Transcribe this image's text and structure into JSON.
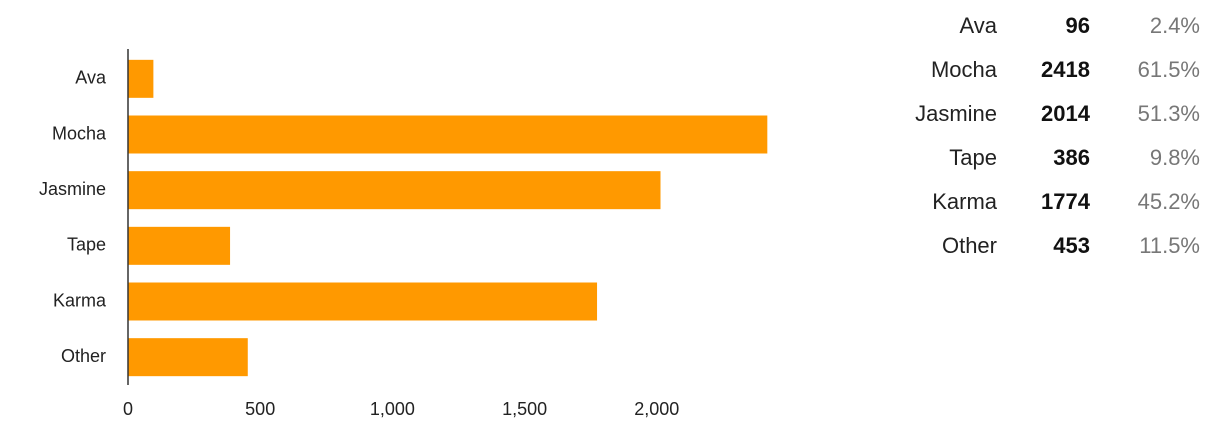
{
  "chart_data": {
    "type": "bar",
    "orientation": "horizontal",
    "categories": [
      "Ava",
      "Mocha",
      "Jasmine",
      "Tape",
      "Karma",
      "Other"
    ],
    "values": [
      96,
      2418,
      2014,
      386,
      1774,
      453
    ],
    "color": "#ff9900",
    "xlim": [
      0,
      2500
    ],
    "xticks": [
      0,
      500,
      {
        "value": 1000,
        "label": "1,000"
      },
      {
        "value": 1500,
        "label": "1,500"
      },
      {
        "value": 2000,
        "label": "2,000"
      }
    ],
    "grid": false
  },
  "table": {
    "rows": [
      [
        "Ava",
        "96",
        "2.4%"
      ],
      [
        "Mocha",
        "2418",
        "61.5%"
      ],
      [
        "Jasmine",
        "2014",
        "51.3%"
      ],
      [
        "Tape",
        "386",
        "9.8%"
      ],
      [
        "Karma",
        "1774",
        "45.2%"
      ],
      [
        "Other",
        "453",
        "11.5%"
      ]
    ]
  }
}
